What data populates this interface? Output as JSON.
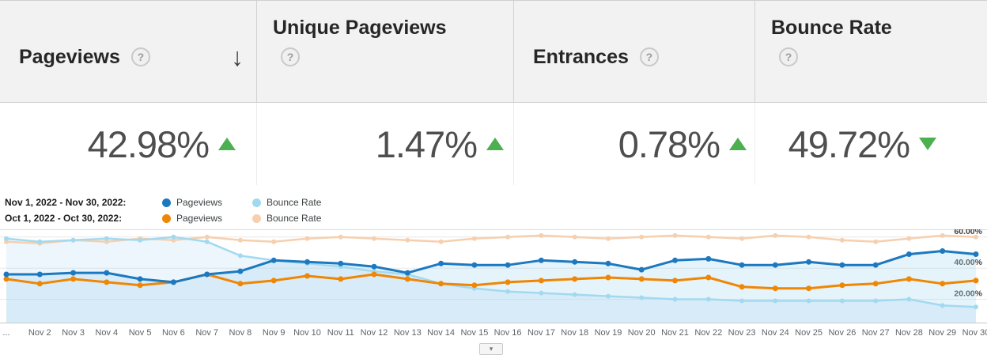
{
  "colors": {
    "trend_green": "#4caf50",
    "header_bg": "#f2f2f2"
  },
  "icons": {
    "help_glyph": "?",
    "sort_glyph": "↓",
    "caret_glyph": "▾"
  },
  "table": {
    "columns": [
      {
        "label": "Pageviews",
        "value": "42.98%",
        "trend": "up",
        "sorted": "descending"
      },
      {
        "label": "Unique Pageviews",
        "value": "1.47%",
        "trend": "up"
      },
      {
        "label": "Entrances",
        "value": "0.78%",
        "trend": "up"
      },
      {
        "label": "Bounce Rate",
        "value": "49.72%",
        "trend": "down"
      }
    ]
  },
  "legend": [
    {
      "label": "Nov 1, 2022 - Nov 30, 2022:",
      "items": [
        {
          "name": "Pageviews",
          "color": "#1c79c0"
        },
        {
          "name": "Bounce Rate",
          "color": "#a3d9f0"
        }
      ]
    },
    {
      "label": "Oct 1, 2022 - Oct 30, 2022:",
      "items": [
        {
          "name": "Pageviews",
          "color": "#ef8604"
        },
        {
          "name": "Bounce Rate",
          "color": "#f6cfae"
        }
      ]
    }
  ],
  "chart_data": {
    "type": "line",
    "grid": true,
    "legend_position": "top-left",
    "ylim": [
      5,
      65
    ],
    "gridlines": [
      20,
      40,
      60
    ],
    "y_tick_labels": [
      "20.00%",
      "40.00%",
      "60.00%"
    ],
    "x_labels": [
      "...",
      "Nov 2",
      "Nov 3",
      "Nov 4",
      "Nov 5",
      "Nov 6",
      "Nov 7",
      "Nov 8",
      "Nov 9",
      "Nov 10",
      "Nov 11",
      "Nov 12",
      "Nov 13",
      "Nov 14",
      "Nov 15",
      "Nov 16",
      "Nov 17",
      "Nov 18",
      "Nov 19",
      "Nov 20",
      "Nov 21",
      "Nov 22",
      "Nov 23",
      "Nov 24",
      "Nov 25",
      "Nov 26",
      "Nov 27",
      "Nov 28",
      "Nov 29",
      "Nov 30"
    ],
    "series": [
      {
        "name": "Pageviews (Nov 1, 2022 - Nov 30, 2022)",
        "color": "#1c79c0",
        "fill": true,
        "fill_color": "rgba(170,215,240,0.30)",
        "width": 3,
        "marker_r": 3.5,
        "values": [
          36,
          36,
          37,
          37,
          33,
          31,
          36,
          38,
          45,
          44,
          43,
          41,
          37,
          43,
          42,
          42,
          45,
          44,
          43,
          39,
          45,
          46,
          42,
          42,
          44,
          42,
          42,
          49,
          51,
          49
        ]
      },
      {
        "name": "Bounce Rate (Nov 1, 2022 - Nov 30, 2022)",
        "color": "#a3d9f0",
        "fill": true,
        "fill_color": "rgba(170,215,240,0.22)",
        "width": 2.5,
        "marker_r": 3,
        "values": [
          59,
          57,
          58,
          59,
          58,
          60,
          57,
          48,
          45,
          43,
          41,
          38,
          36,
          30,
          27,
          25,
          24,
          23,
          22,
          21,
          20,
          20,
          19,
          19,
          19,
          19,
          19,
          20,
          16,
          15
        ]
      },
      {
        "name": "Pageviews (Oct 1, 2022 - Oct 30, 2022)",
        "color": "#ef8604",
        "fill": false,
        "fill_color": "none",
        "width": 3,
        "marker_r": 3.5,
        "values": [
          33,
          30,
          33,
          31,
          29,
          31,
          36,
          30,
          32,
          35,
          33,
          36,
          33,
          30,
          29,
          31,
          32,
          33,
          34,
          33,
          32,
          34,
          28,
          27,
          27,
          29,
          30,
          33,
          30,
          32
        ]
      },
      {
        "name": "Bounce Rate (Oct 1, 2022 - Oct 30, 2022)",
        "color": "#f6cfae",
        "fill": false,
        "fill_color": "none",
        "width": 2.5,
        "marker_r": 3,
        "values": [
          57,
          56,
          58,
          57,
          59,
          58,
          60,
          58,
          57,
          59,
          60,
          59,
          58,
          57,
          59,
          60,
          61,
          60,
          59,
          60,
          61,
          60,
          59,
          61,
          60,
          58,
          57,
          59,
          61,
          60
        ]
      }
    ]
  }
}
